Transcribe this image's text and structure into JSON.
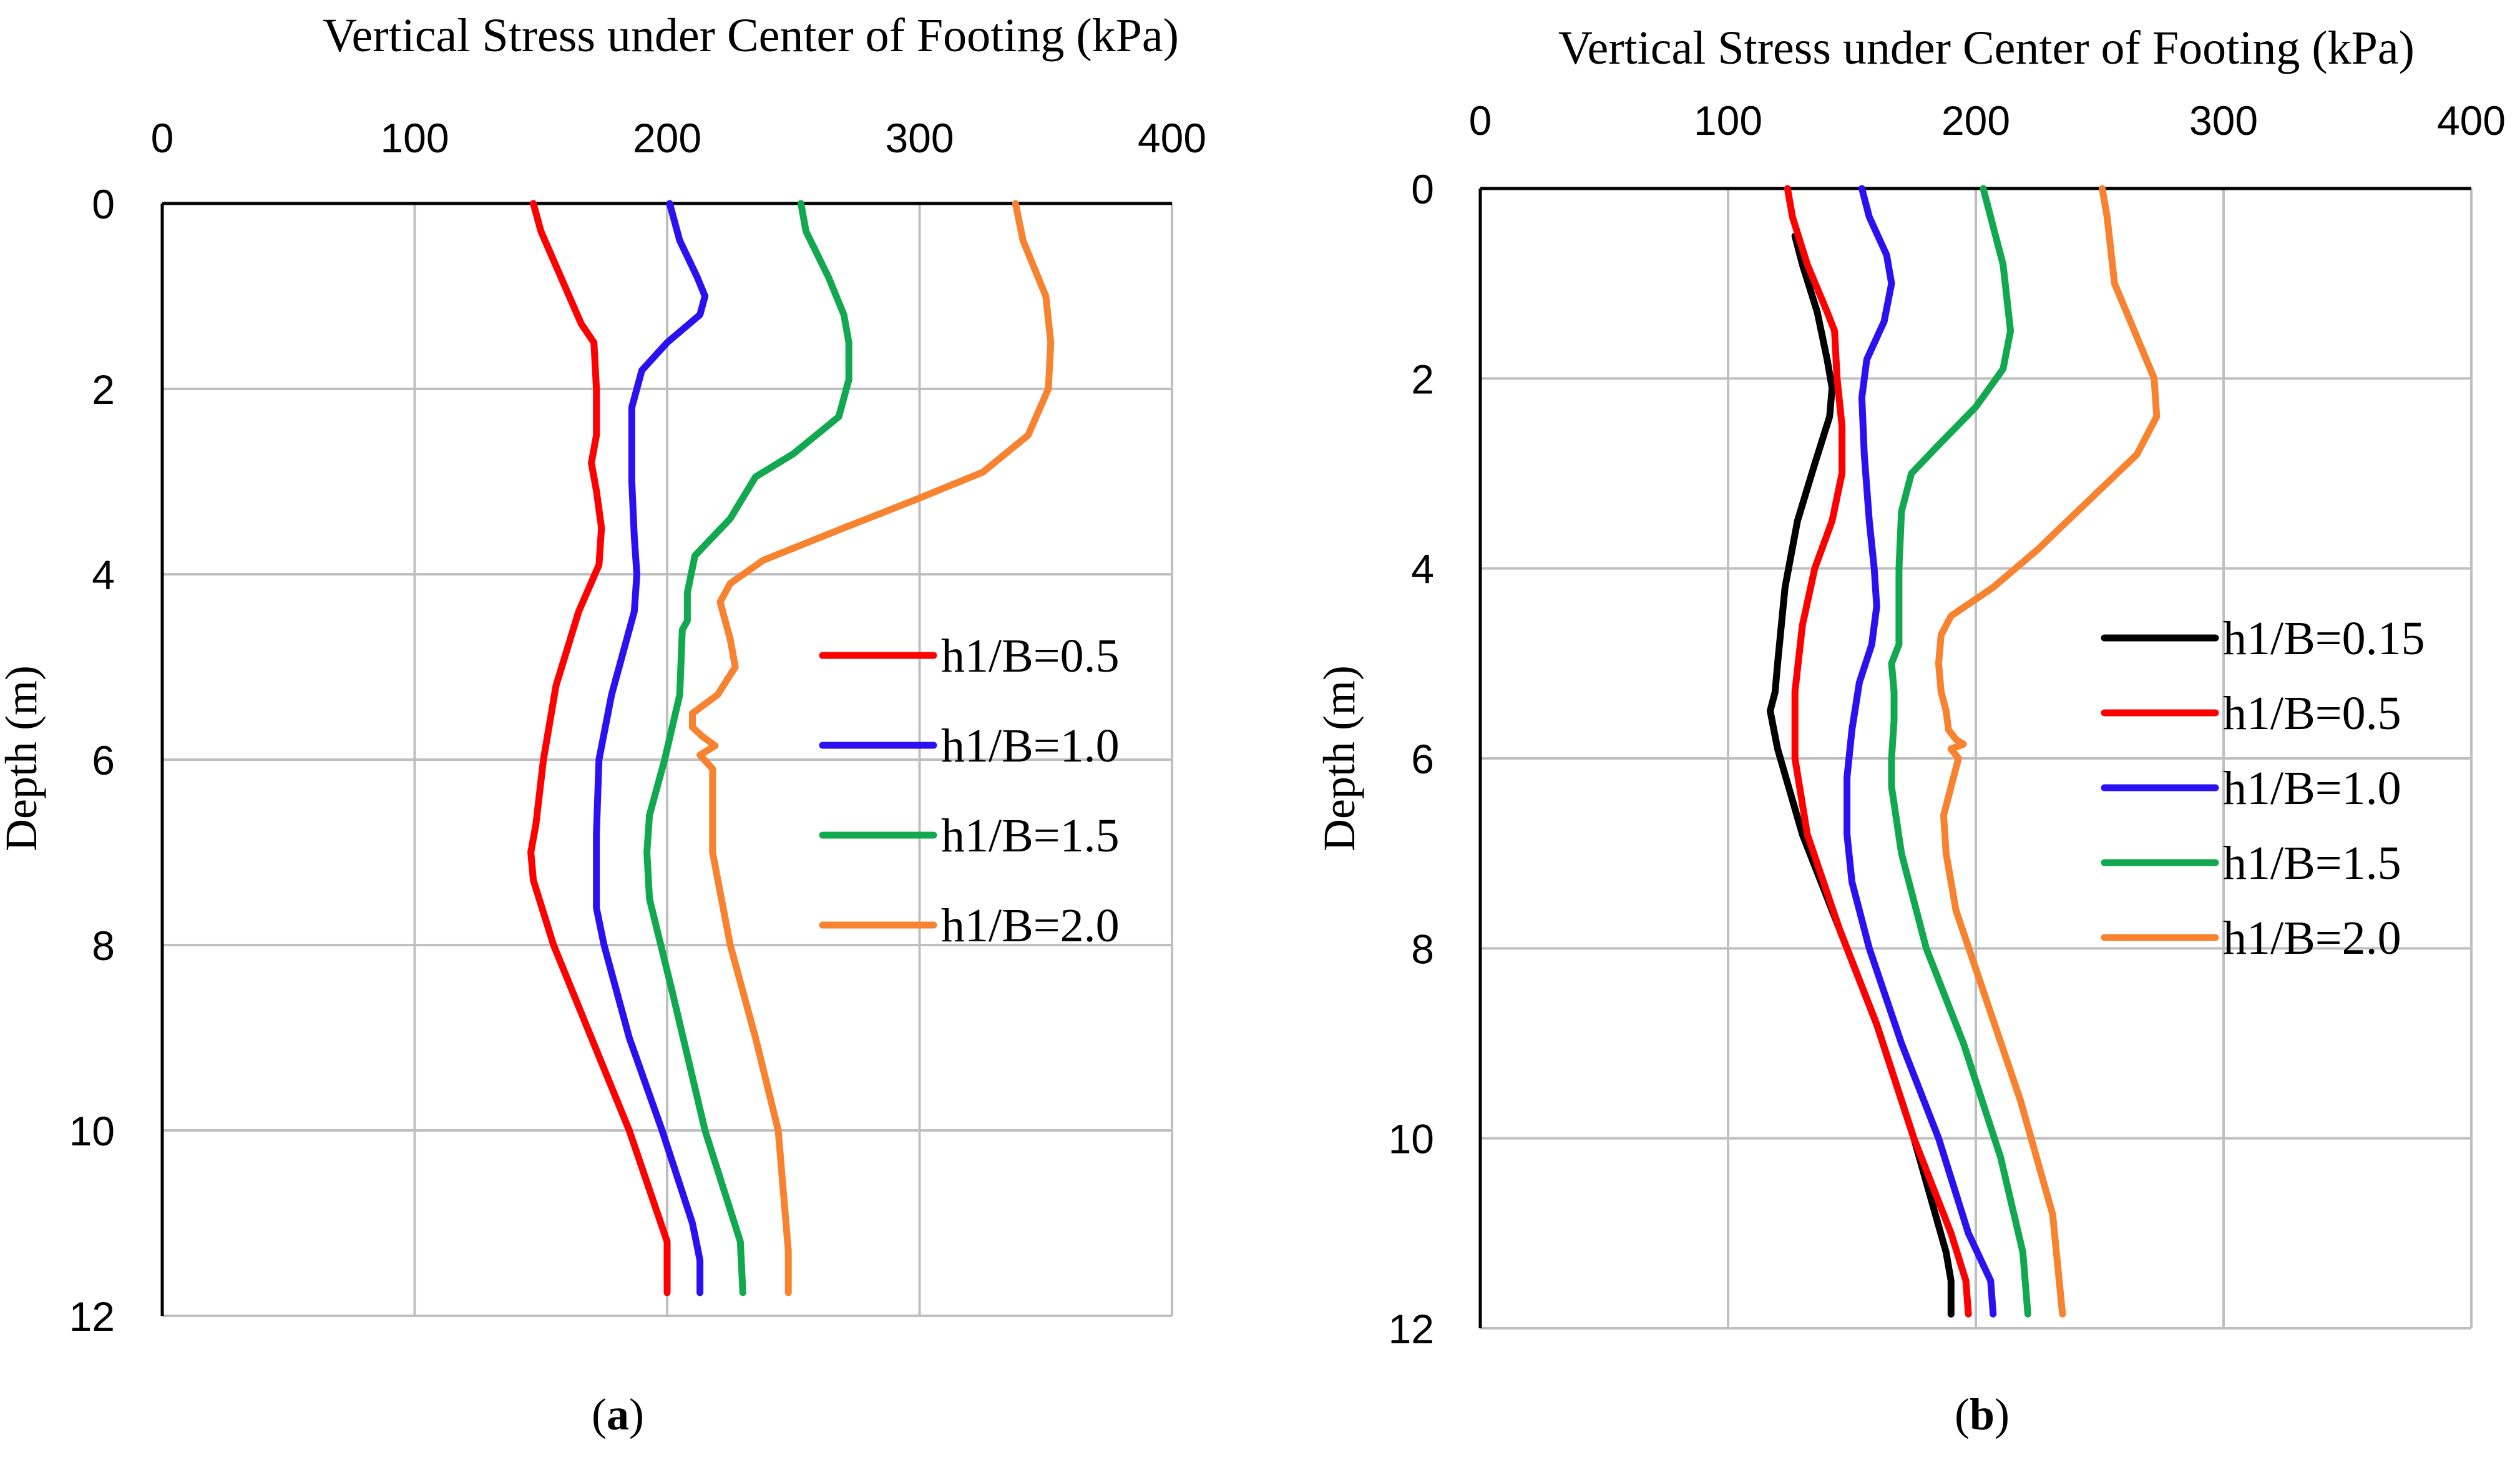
{
  "chart_data": [
    {
      "panel": "a",
      "type": "line",
      "title": "Vertical Stress under Center of Footing (kPa)",
      "ylabel": "Depth (m)",
      "caption": {
        "open": "(",
        "letter": "a",
        "close": ")"
      },
      "xlim": [
        0,
        400
      ],
      "ylim": [
        0,
        12
      ],
      "y_reversed": true,
      "x_axis_position": "top",
      "x_ticks": [
        0,
        100,
        200,
        300,
        400
      ],
      "y_ticks": [
        0,
        2,
        4,
        6,
        8,
        10,
        12
      ],
      "x_tick_labels": [
        "0",
        "100",
        "200",
        "300",
        "400"
      ],
      "y_tick_labels": [
        "0",
        "2",
        "4",
        "6",
        "8",
        "10",
        "12"
      ],
      "grid": true,
      "legend_position": "right-middle",
      "series": [
        {
          "name": "h1/B=0.5",
          "color": "#ff0000",
          "x": [
            147,
            150,
            158,
            166,
            171,
            172,
            172,
            170,
            172,
            174,
            173,
            165,
            156,
            151,
            148,
            146,
            147,
            155,
            170,
            185,
            200,
            200
          ],
          "y": [
            0,
            0.3,
            0.8,
            1.3,
            1.5,
            2,
            2.5,
            2.8,
            3.1,
            3.5,
            3.9,
            4.4,
            5.2,
            6,
            6.7,
            7,
            7.3,
            8,
            9,
            10,
            11.2,
            11.75
          ]
        },
        {
          "name": "h1/B=1.0",
          "color": "#2a12f0",
          "x": [
            201,
            205,
            212,
            215,
            213,
            200,
            190,
            186,
            186,
            187,
            188,
            187,
            178,
            173,
            172,
            172,
            175,
            185,
            198,
            210,
            213,
            213
          ],
          "y": [
            0,
            0.4,
            0.8,
            1.0,
            1.2,
            1.5,
            1.8,
            2.2,
            3,
            3.6,
            4.0,
            4.4,
            5.3,
            6,
            6.8,
            7.6,
            8,
            9,
            10,
            11,
            11.4,
            11.75
          ]
        },
        {
          "name": "h1/B=1.5",
          "color": "#12a84f",
          "x": [
            253,
            255,
            264,
            270,
            272,
            272,
            268,
            250,
            235,
            225,
            211,
            208,
            208,
            206,
            205,
            199,
            193,
            192,
            193,
            202,
            215,
            229,
            230
          ],
          "y": [
            0,
            0.3,
            0.8,
            1.2,
            1.5,
            1.9,
            2.3,
            2.7,
            2.95,
            3.4,
            3.8,
            4.2,
            4.5,
            4.6,
            5.3,
            6,
            6.6,
            7,
            7.5,
            8.5,
            10,
            11.2,
            11.75
          ]
        },
        {
          "name": "h1/B=2.0",
          "color": "#f7822f",
          "x": [
            338,
            341,
            350,
            352,
            351,
            343,
            325,
            298,
            270,
            238,
            225,
            221,
            225,
            227,
            220,
            210,
            210,
            214,
            219,
            213,
            218,
            218,
            218,
            225,
            235,
            244,
            248,
            248
          ],
          "y": [
            0,
            0.4,
            1.0,
            1.5,
            2.0,
            2.5,
            2.9,
            3.2,
            3.5,
            3.85,
            4.1,
            4.3,
            4.7,
            5.0,
            5.3,
            5.5,
            5.65,
            5.75,
            5.85,
            5.95,
            6.1,
            6.5,
            7,
            8,
            9,
            10,
            11.3,
            11.75
          ]
        }
      ]
    },
    {
      "panel": "b",
      "type": "line",
      "title": "Vertical Stress under Center of Footing (kPa)",
      "ylabel": "Depth (m)",
      "caption": {
        "open": "(",
        "letter": "b",
        "close": ")"
      },
      "xlim": [
        0,
        400
      ],
      "ylim": [
        0,
        12
      ],
      "y_reversed": true,
      "x_axis_position": "top",
      "x_ticks": [
        0,
        100,
        200,
        300,
        400
      ],
      "y_ticks": [
        0,
        2,
        4,
        6,
        8,
        10,
        12
      ],
      "x_tick_labels": [
        "0",
        "100",
        "200",
        "300",
        "400"
      ],
      "y_tick_labels": [
        "0",
        "2",
        "4",
        "6",
        "8",
        "10",
        "12"
      ],
      "grid": true,
      "legend_position": "right-middle",
      "series": [
        {
          "name": "h1/B=0.15",
          "color": "#000000",
          "x": [
            127,
            130,
            136,
            140,
            142,
            141,
            135,
            128,
            123,
            120,
            119,
            117,
            120,
            130,
            145,
            160,
            175,
            188,
            190,
            190
          ],
          "y": [
            0.5,
            0.8,
            1.3,
            1.8,
            2.1,
            2.4,
            2.9,
            3.5,
            4.2,
            5.0,
            5.3,
            5.5,
            5.9,
            6.8,
            7.8,
            8.8,
            10,
            11.2,
            11.5,
            11.85
          ]
        },
        {
          "name": "h1/B=0.5",
          "color": "#ff0000",
          "x": [
            124,
            126,
            132,
            140,
            143,
            144,
            146,
            146,
            142,
            135,
            130,
            127,
            127,
            132,
            145,
            160,
            175,
            190,
            196,
            197
          ],
          "y": [
            0,
            0.3,
            0.8,
            1.3,
            1.5,
            2.0,
            2.5,
            3.0,
            3.5,
            4.0,
            4.6,
            5.3,
            6.0,
            6.8,
            7.8,
            8.8,
            10,
            11,
            11.5,
            11.85
          ]
        },
        {
          "name": "h1/B=1.0",
          "color": "#2a12f0",
          "x": [
            154,
            157,
            164,
            166,
            163,
            156,
            154,
            155,
            157,
            159,
            160,
            158,
            153,
            150,
            148,
            148,
            150,
            157,
            170,
            185,
            197,
            206,
            207
          ],
          "y": [
            0,
            0.3,
            0.7,
            1.0,
            1.4,
            1.8,
            2.2,
            2.8,
            3.5,
            4.0,
            4.4,
            4.8,
            5.2,
            5.7,
            6.2,
            6.8,
            7.3,
            8.0,
            9.0,
            10,
            11,
            11.5,
            11.85
          ]
        },
        {
          "name": "h1/B=1.5",
          "color": "#12a84f",
          "x": [
            203,
            206,
            211,
            214,
            211,
            200,
            185,
            174,
            170,
            169,
            169,
            169,
            166,
            167,
            167,
            166,
            166,
            170,
            180,
            195,
            210,
            219,
            221
          ],
          "y": [
            0,
            0.3,
            0.8,
            1.5,
            1.9,
            2.3,
            2.7,
            3.0,
            3.4,
            4.0,
            4.5,
            4.8,
            5.0,
            5.3,
            5.6,
            6.0,
            6.3,
            7.0,
            8.0,
            9.0,
            10.2,
            11.2,
            11.85
          ]
        },
        {
          "name": "h1/B=2.0",
          "color": "#f7822f",
          "x": [
            251,
            253,
            256,
            264,
            272,
            273,
            265,
            245,
            225,
            207,
            190,
            186,
            185,
            186,
            188,
            189,
            192,
            195,
            190,
            193,
            191,
            187,
            188,
            192,
            205,
            218,
            231,
            235
          ],
          "y": [
            0,
            0.3,
            1.0,
            1.5,
            2.0,
            2.4,
            2.8,
            3.3,
            3.8,
            4.2,
            4.5,
            4.7,
            5.0,
            5.3,
            5.5,
            5.7,
            5.8,
            5.85,
            5.9,
            6.0,
            6.2,
            6.6,
            7.0,
            7.6,
            8.6,
            9.6,
            10.8,
            11.85
          ]
        }
      ]
    }
  ]
}
